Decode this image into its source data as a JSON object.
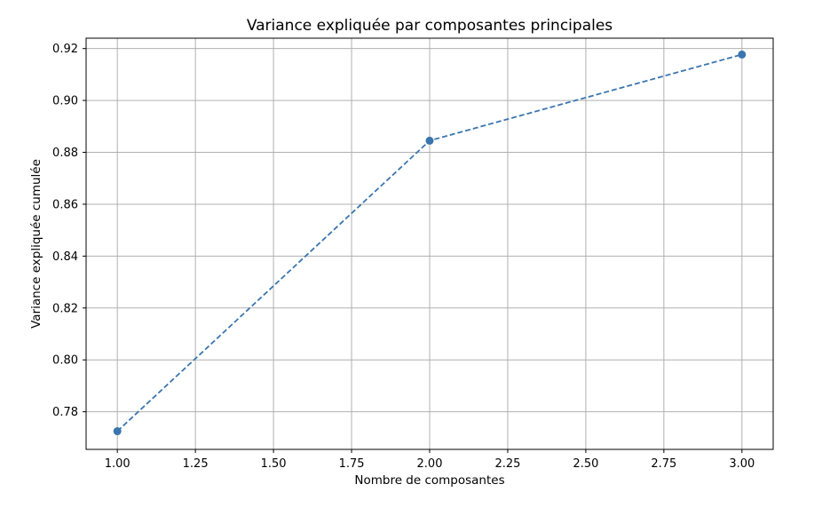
{
  "chart_data": {
    "type": "line",
    "title": "Variance expliquée par composantes principales",
    "xlabel": "Nombre de composantes",
    "ylabel": "Variance expliquée cumulée",
    "xlim": [
      0.9,
      3.1
    ],
    "ylim": [
      0.7655,
      0.924
    ],
    "x_ticks": [
      1.0,
      1.25,
      1.5,
      1.75,
      2.0,
      2.25,
      2.5,
      2.75,
      3.0
    ],
    "x_tick_labels": [
      "1.00",
      "1.25",
      "1.50",
      "1.75",
      "2.00",
      "2.25",
      "2.50",
      "2.75",
      "3.00"
    ],
    "y_ticks": [
      0.78,
      0.8,
      0.82,
      0.84,
      0.86,
      0.88,
      0.9,
      0.92
    ],
    "y_tick_labels": [
      "0.78",
      "0.80",
      "0.82",
      "0.84",
      "0.86",
      "0.88",
      "0.90",
      "0.92"
    ],
    "grid": true,
    "line_style": "dashed",
    "marker": "circle",
    "series": [
      {
        "x": [
          1,
          2,
          3
        ],
        "y": [
          0.7725,
          0.8845,
          0.9177
        ],
        "color": "#3a75ae"
      }
    ],
    "grid_color": "#b0b0b0",
    "frame_color": "#000000"
  }
}
